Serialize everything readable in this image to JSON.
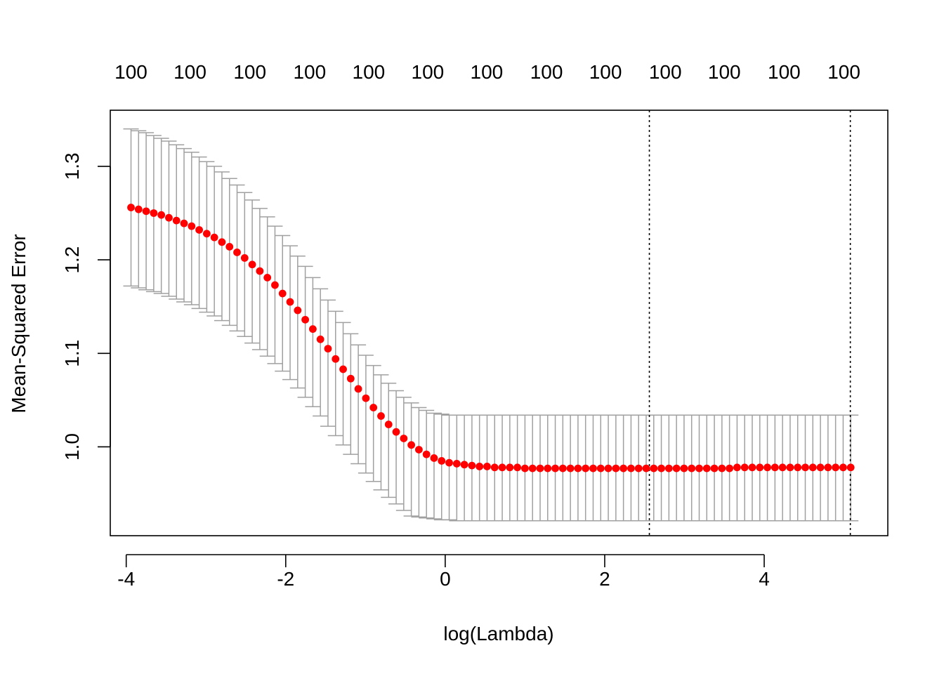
{
  "chart_data": {
    "type": "scatter",
    "xlabel": "log(Lambda)",
    "ylabel": "Mean-Squared Error",
    "xlim": [
      -4.2,
      5.55
    ],
    "ylim": [
      0.905,
      1.36
    ],
    "x_ticks": [
      -4,
      -2,
      0,
      2,
      4
    ],
    "x_tick_labels": [
      "-4",
      "-2",
      "0",
      "2",
      "4"
    ],
    "y_ticks": [
      1.0,
      1.1,
      1.2,
      1.3
    ],
    "y_tick_labels": [
      "1.0",
      "1.1",
      "1.2",
      "1.3"
    ],
    "top_axis": {
      "x": [
        -3.94,
        -3.2,
        -2.45,
        -1.7,
        -0.96,
        -0.22,
        0.52,
        1.27,
        2.01,
        2.76,
        3.5,
        4.25,
        5.0
      ],
      "labels": [
        "100",
        "100",
        "100",
        "100",
        "100",
        "100",
        "100",
        "100",
        "100",
        "100",
        "100",
        "100",
        "100"
      ]
    },
    "vlines": [
      2.56,
      5.08
    ],
    "grid": false,
    "legend": "none",
    "colors": {
      "points": "#ff0000",
      "error_bars": "#a0a0a0",
      "vlines": "#000000"
    },
    "series": [
      {
        "x": [
          -3.94,
          -3.845,
          -3.75,
          -3.655,
          -3.56,
          -3.465,
          -3.37,
          -3.275,
          -3.18,
          -3.085,
          -2.99,
          -2.895,
          -2.8,
          -2.705,
          -2.61,
          -2.515,
          -2.42,
          -2.325,
          -2.23,
          -2.135,
          -2.04,
          -1.945,
          -1.85,
          -1.755,
          -1.66,
          -1.565,
          -1.47,
          -1.375,
          -1.28,
          -1.185,
          -1.09,
          -0.995,
          -0.9,
          -0.805,
          -0.71,
          -0.615,
          -0.52,
          -0.425,
          -0.33,
          -0.235,
          -0.14,
          -0.045,
          0.05,
          0.145,
          0.24,
          0.335,
          0.43,
          0.525,
          0.62,
          0.715,
          0.81,
          0.905,
          1.0,
          1.095,
          1.19,
          1.285,
          1.38,
          1.475,
          1.57,
          1.665,
          1.76,
          1.855,
          1.95,
          2.045,
          2.14,
          2.235,
          2.33,
          2.425,
          2.52,
          2.615,
          2.71,
          2.805,
          2.9,
          2.995,
          3.09,
          3.185,
          3.28,
          3.375,
          3.47,
          3.565,
          3.66,
          3.755,
          3.85,
          3.945,
          4.04,
          4.135,
          4.23,
          4.325,
          4.42,
          4.515,
          4.61,
          4.705,
          4.8,
          4.895,
          4.99,
          5.085
        ],
        "y": [
          1.256,
          1.254,
          1.252,
          1.25,
          1.248,
          1.245,
          1.242,
          1.239,
          1.236,
          1.232,
          1.228,
          1.224,
          1.219,
          1.214,
          1.208,
          1.202,
          1.195,
          1.188,
          1.181,
          1.173,
          1.164,
          1.155,
          1.146,
          1.136,
          1.126,
          1.115,
          1.105,
          1.094,
          1.083,
          1.073,
          1.062,
          1.052,
          1.042,
          1.033,
          1.024,
          1.016,
          1.009,
          1.002,
          0.997,
          0.992,
          0.988,
          0.985,
          0.983,
          0.982,
          0.981,
          0.98,
          0.979,
          0.979,
          0.978,
          0.978,
          0.978,
          0.978,
          0.977,
          0.977,
          0.977,
          0.977,
          0.977,
          0.977,
          0.977,
          0.977,
          0.977,
          0.977,
          0.977,
          0.977,
          0.977,
          0.977,
          0.977,
          0.977,
          0.977,
          0.977,
          0.977,
          0.977,
          0.977,
          0.977,
          0.977,
          0.977,
          0.977,
          0.977,
          0.977,
          0.977,
          0.978,
          0.978,
          0.978,
          0.978,
          0.978,
          0.978,
          0.978,
          0.978,
          0.978,
          0.978,
          0.978,
          0.978,
          0.978,
          0.978,
          0.978,
          0.978
        ],
        "upper": [
          1.34,
          1.338,
          1.336,
          1.333,
          1.33,
          1.327,
          1.323,
          1.319,
          1.315,
          1.31,
          1.305,
          1.3,
          1.294,
          1.287,
          1.28,
          1.272,
          1.264,
          1.255,
          1.246,
          1.236,
          1.226,
          1.215,
          1.204,
          1.193,
          1.181,
          1.169,
          1.157,
          1.145,
          1.133,
          1.121,
          1.109,
          1.098,
          1.087,
          1.077,
          1.068,
          1.06,
          1.053,
          1.047,
          1.042,
          1.039,
          1.036,
          1.035,
          1.034,
          1.034,
          1.034,
          1.034,
          1.034,
          1.034,
          1.034,
          1.034,
          1.034,
          1.034,
          1.034,
          1.034,
          1.034,
          1.034,
          1.034,
          1.034,
          1.034,
          1.034,
          1.034,
          1.034,
          1.034,
          1.034,
          1.034,
          1.034,
          1.034,
          1.034,
          1.034,
          1.034,
          1.034,
          1.034,
          1.034,
          1.034,
          1.034,
          1.034,
          1.034,
          1.034,
          1.034,
          1.034,
          1.034,
          1.034,
          1.034,
          1.034,
          1.034,
          1.034,
          1.034,
          1.034,
          1.034,
          1.034,
          1.034,
          1.034,
          1.034,
          1.034,
          1.034,
          1.034
        ],
        "lower": [
          1.172,
          1.17,
          1.168,
          1.166,
          1.164,
          1.161,
          1.158,
          1.155,
          1.152,
          1.148,
          1.144,
          1.14,
          1.135,
          1.13,
          1.124,
          1.118,
          1.111,
          1.104,
          1.097,
          1.089,
          1.081,
          1.072,
          1.063,
          1.053,
          1.043,
          1.033,
          1.022,
          1.012,
          1.002,
          0.992,
          0.982,
          0.972,
          0.963,
          0.954,
          0.946,
          0.939,
          0.932,
          0.926,
          0.925,
          0.924,
          0.923,
          0.922,
          0.922,
          0.921,
          0.921,
          0.921,
          0.921,
          0.921,
          0.921,
          0.921,
          0.921,
          0.921,
          0.921,
          0.921,
          0.921,
          0.921,
          0.921,
          0.921,
          0.921,
          0.921,
          0.921,
          0.921,
          0.921,
          0.921,
          0.921,
          0.921,
          0.921,
          0.921,
          0.921,
          0.921,
          0.921,
          0.921,
          0.921,
          0.921,
          0.921,
          0.921,
          0.921,
          0.921,
          0.921,
          0.921,
          0.921,
          0.921,
          0.921,
          0.921,
          0.921,
          0.921,
          0.921,
          0.921,
          0.921,
          0.921,
          0.921,
          0.921,
          0.921,
          0.921,
          0.921,
          0.921
        ]
      }
    ]
  }
}
